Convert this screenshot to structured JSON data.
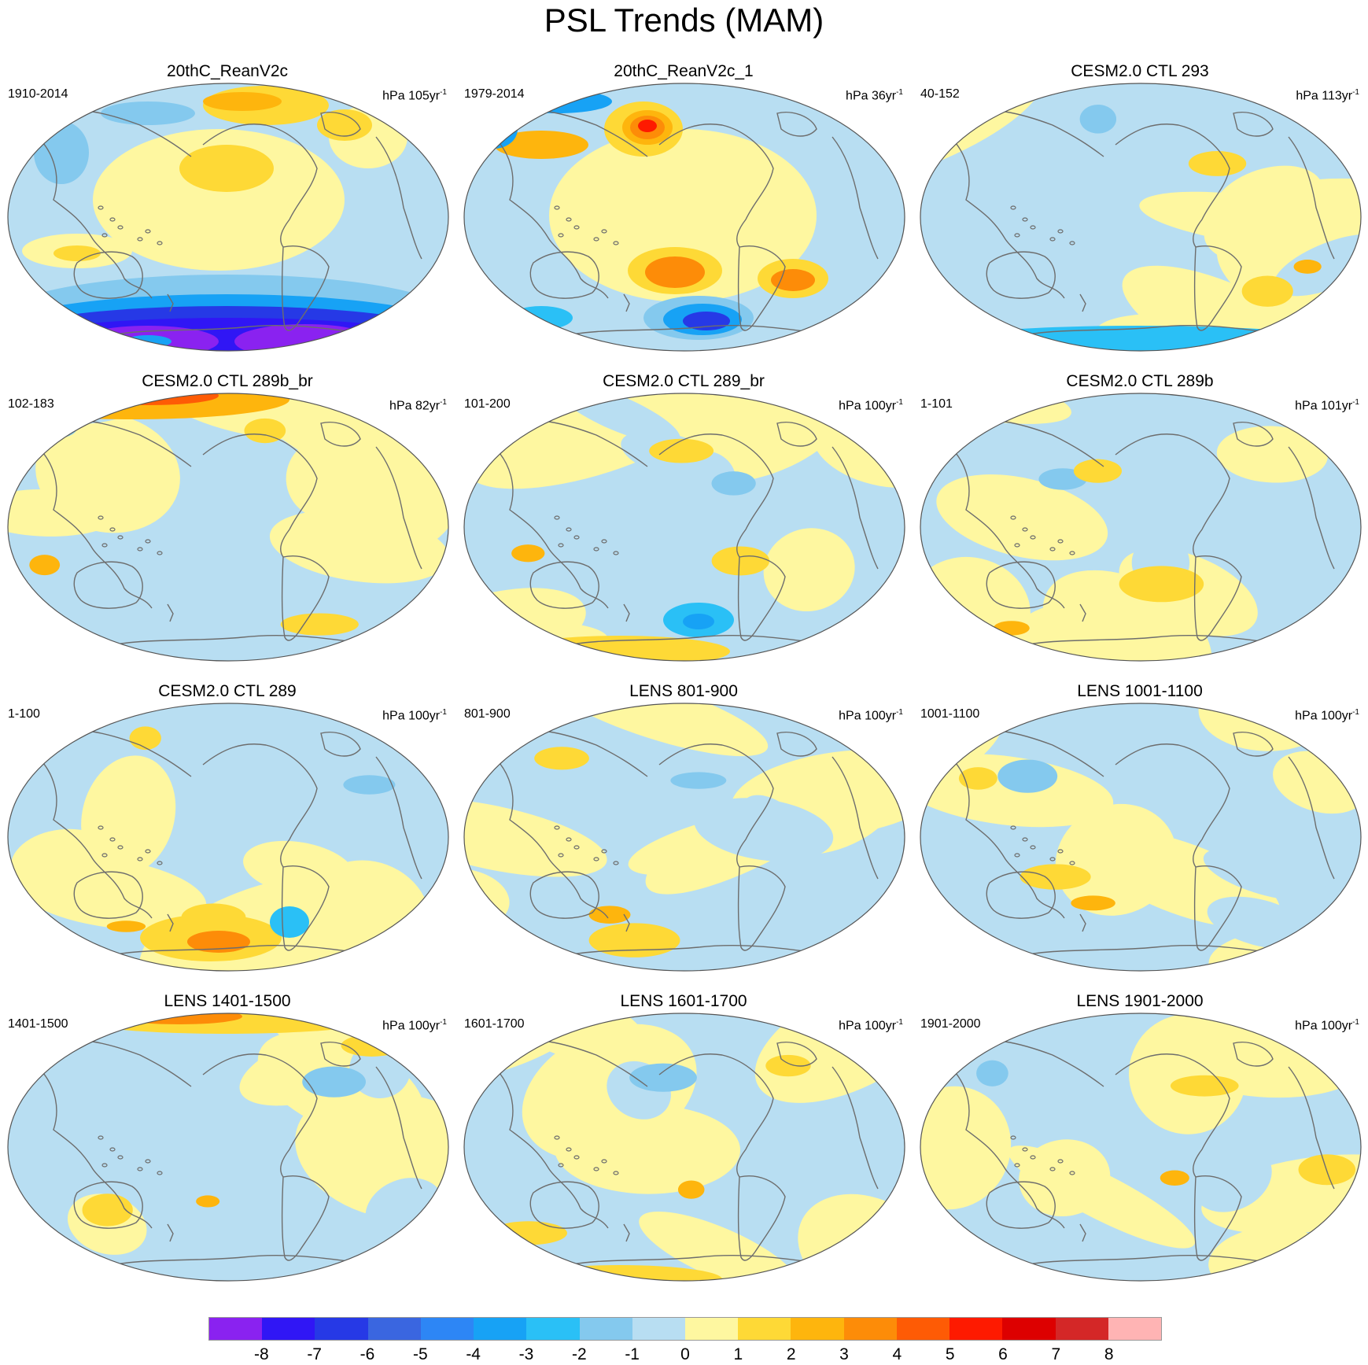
{
  "title": "PSL Trends (MAM)",
  "panels": [
    {
      "title": "20thC_ReanV2c",
      "period": "1910-2014",
      "units_prefix": "hPa 105yr",
      "units_exp": "-1",
      "tone": "rean1"
    },
    {
      "title": "20thC_ReanV2c_1",
      "period": "1979-2014",
      "units_prefix": "hPa 36yr",
      "units_exp": "-1",
      "tone": "rean2"
    },
    {
      "title": "CESM2.0 CTL 293",
      "period": "40-152",
      "units_prefix": "hPa 113yr",
      "units_exp": "-1",
      "tone": "model"
    },
    {
      "title": "CESM2.0 CTL 289b_br",
      "period": "102-183",
      "units_prefix": "hPa 82yr",
      "units_exp": "-1",
      "tone": "model"
    },
    {
      "title": "CESM2.0 CTL 289_br",
      "period": "101-200",
      "units_prefix": "hPa 100yr",
      "units_exp": "-1",
      "tone": "model"
    },
    {
      "title": "CESM2.0 CTL 289b",
      "period": "1-101",
      "units_prefix": "hPa 101yr",
      "units_exp": "-1",
      "tone": "model"
    },
    {
      "title": "CESM2.0 CTL 289",
      "period": "1-100",
      "units_prefix": "hPa 100yr",
      "units_exp": "-1",
      "tone": "model"
    },
    {
      "title": "LENS 801-900",
      "period": "801-900",
      "units_prefix": "hPa 100yr",
      "units_exp": "-1",
      "tone": "model"
    },
    {
      "title": "LENS 1001-1100",
      "period": "1001-1100",
      "units_prefix": "hPa 100yr",
      "units_exp": "-1",
      "tone": "model"
    },
    {
      "title": "LENS 1401-1500",
      "period": "1401-1500",
      "units_prefix": "hPa 100yr",
      "units_exp": "-1",
      "tone": "model"
    },
    {
      "title": "LENS 1601-1700",
      "period": "1601-1700",
      "units_prefix": "hPa 100yr",
      "units_exp": "-1",
      "tone": "model"
    },
    {
      "title": "LENS 1901-2000",
      "period": "1901-2000",
      "units_prefix": "hPa 100yr",
      "units_exp": "-1",
      "tone": "model"
    }
  ],
  "colorbar": {
    "labels": [
      "-8",
      "-7",
      "-6",
      "-5",
      "-4",
      "-3",
      "-2",
      "-1",
      "0",
      "1",
      "2",
      "3",
      "4",
      "5",
      "6",
      "7",
      "8"
    ],
    "colors": [
      "#8a22f0",
      "#3016f5",
      "#2639e6",
      "#3a66e0",
      "#2d86f5",
      "#17a2f5",
      "#2ac0f6",
      "#84c9ee",
      "#b8def2",
      "#fef7a0",
      "#fed936",
      "#feb50d",
      "#fd8c08",
      "#fe5b05",
      "#fe1a00",
      "#dd0000",
      "#d42727",
      "#ffb4b4"
    ]
  }
}
